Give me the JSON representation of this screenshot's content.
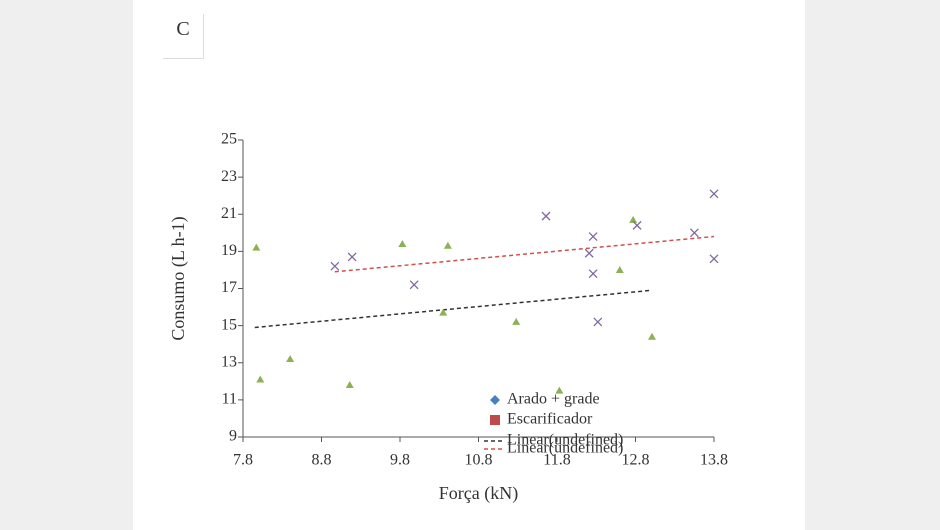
{
  "panel_label": "C",
  "chart_data": {
    "type": "scatter",
    "xlabel": "Força (kN)",
    "ylabel": "Consumo (L h-1)",
    "xlim": [
      7.8,
      13.8
    ],
    "xticks": [
      7.8,
      8.8,
      9.8,
      10.8,
      11.8,
      12.8,
      13.8
    ],
    "ylim": [
      9,
      25
    ],
    "yticks": [
      9,
      11,
      13,
      15,
      17,
      19,
      21,
      23,
      25
    ],
    "series": [
      {
        "name": "Arado + grade",
        "legend_color": "#4a7ebb",
        "legend_marker": "diamond",
        "color": "#8db255",
        "marker": "triangle",
        "x": [
          7.97,
          8.02,
          8.4,
          9.16,
          9.83,
          10.35,
          10.41,
          11.28,
          11.83,
          12.6,
          12.77,
          13.01
        ],
        "values": [
          19.2,
          12.1,
          13.2,
          11.8,
          19.4,
          15.7,
          19.3,
          15.2,
          11.5,
          18.0,
          20.7,
          14.4
        ]
      },
      {
        "name": "Escarificador",
        "legend_color": "#be4b48",
        "legend_marker": "square",
        "color": "#7f6a9e",
        "marker": "x",
        "x": [
          8.97,
          9.19,
          9.98,
          11.66,
          12.21,
          12.26,
          12.26,
          12.32,
          12.82,
          13.55,
          13.8,
          13.8
        ],
        "values": [
          18.2,
          18.7,
          17.2,
          20.9,
          18.9,
          19.8,
          17.8,
          15.2,
          20.4,
          20.0,
          22.1,
          18.6
        ]
      }
    ],
    "trendlines": [
      {
        "name": "Linear(undefined)",
        "color": "#333333",
        "x": [
          7.95,
          13.0
        ],
        "values": [
          14.9,
          16.9
        ]
      },
      {
        "name": "Linear(undefined)",
        "color": "#d0504c",
        "x": [
          8.97,
          13.8
        ],
        "values": [
          17.9,
          19.8
        ]
      }
    ]
  }
}
